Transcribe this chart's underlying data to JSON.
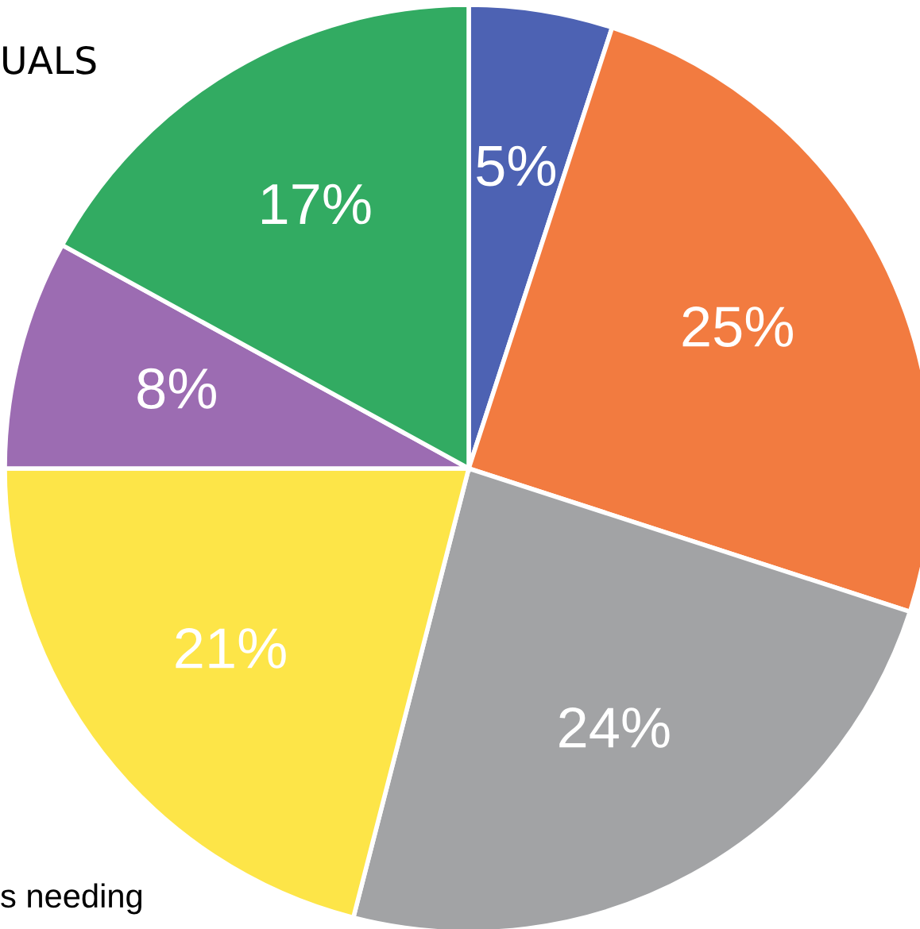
{
  "chart_data": {
    "type": "pie",
    "title": "UALS",
    "annotations": [
      "s needing"
    ],
    "categories": [
      null,
      null,
      null,
      null,
      null,
      null
    ],
    "values": [
      5,
      25,
      24,
      21,
      8,
      17
    ],
    "value_labels": [
      "5%",
      "25%",
      "24%",
      "21%",
      "8%",
      "17%"
    ],
    "colors": [
      "#4d62b3",
      "#f27b40",
      "#a2a3a5",
      "#fde548",
      "#9c6cb2",
      "#32ab62"
    ]
  }
}
